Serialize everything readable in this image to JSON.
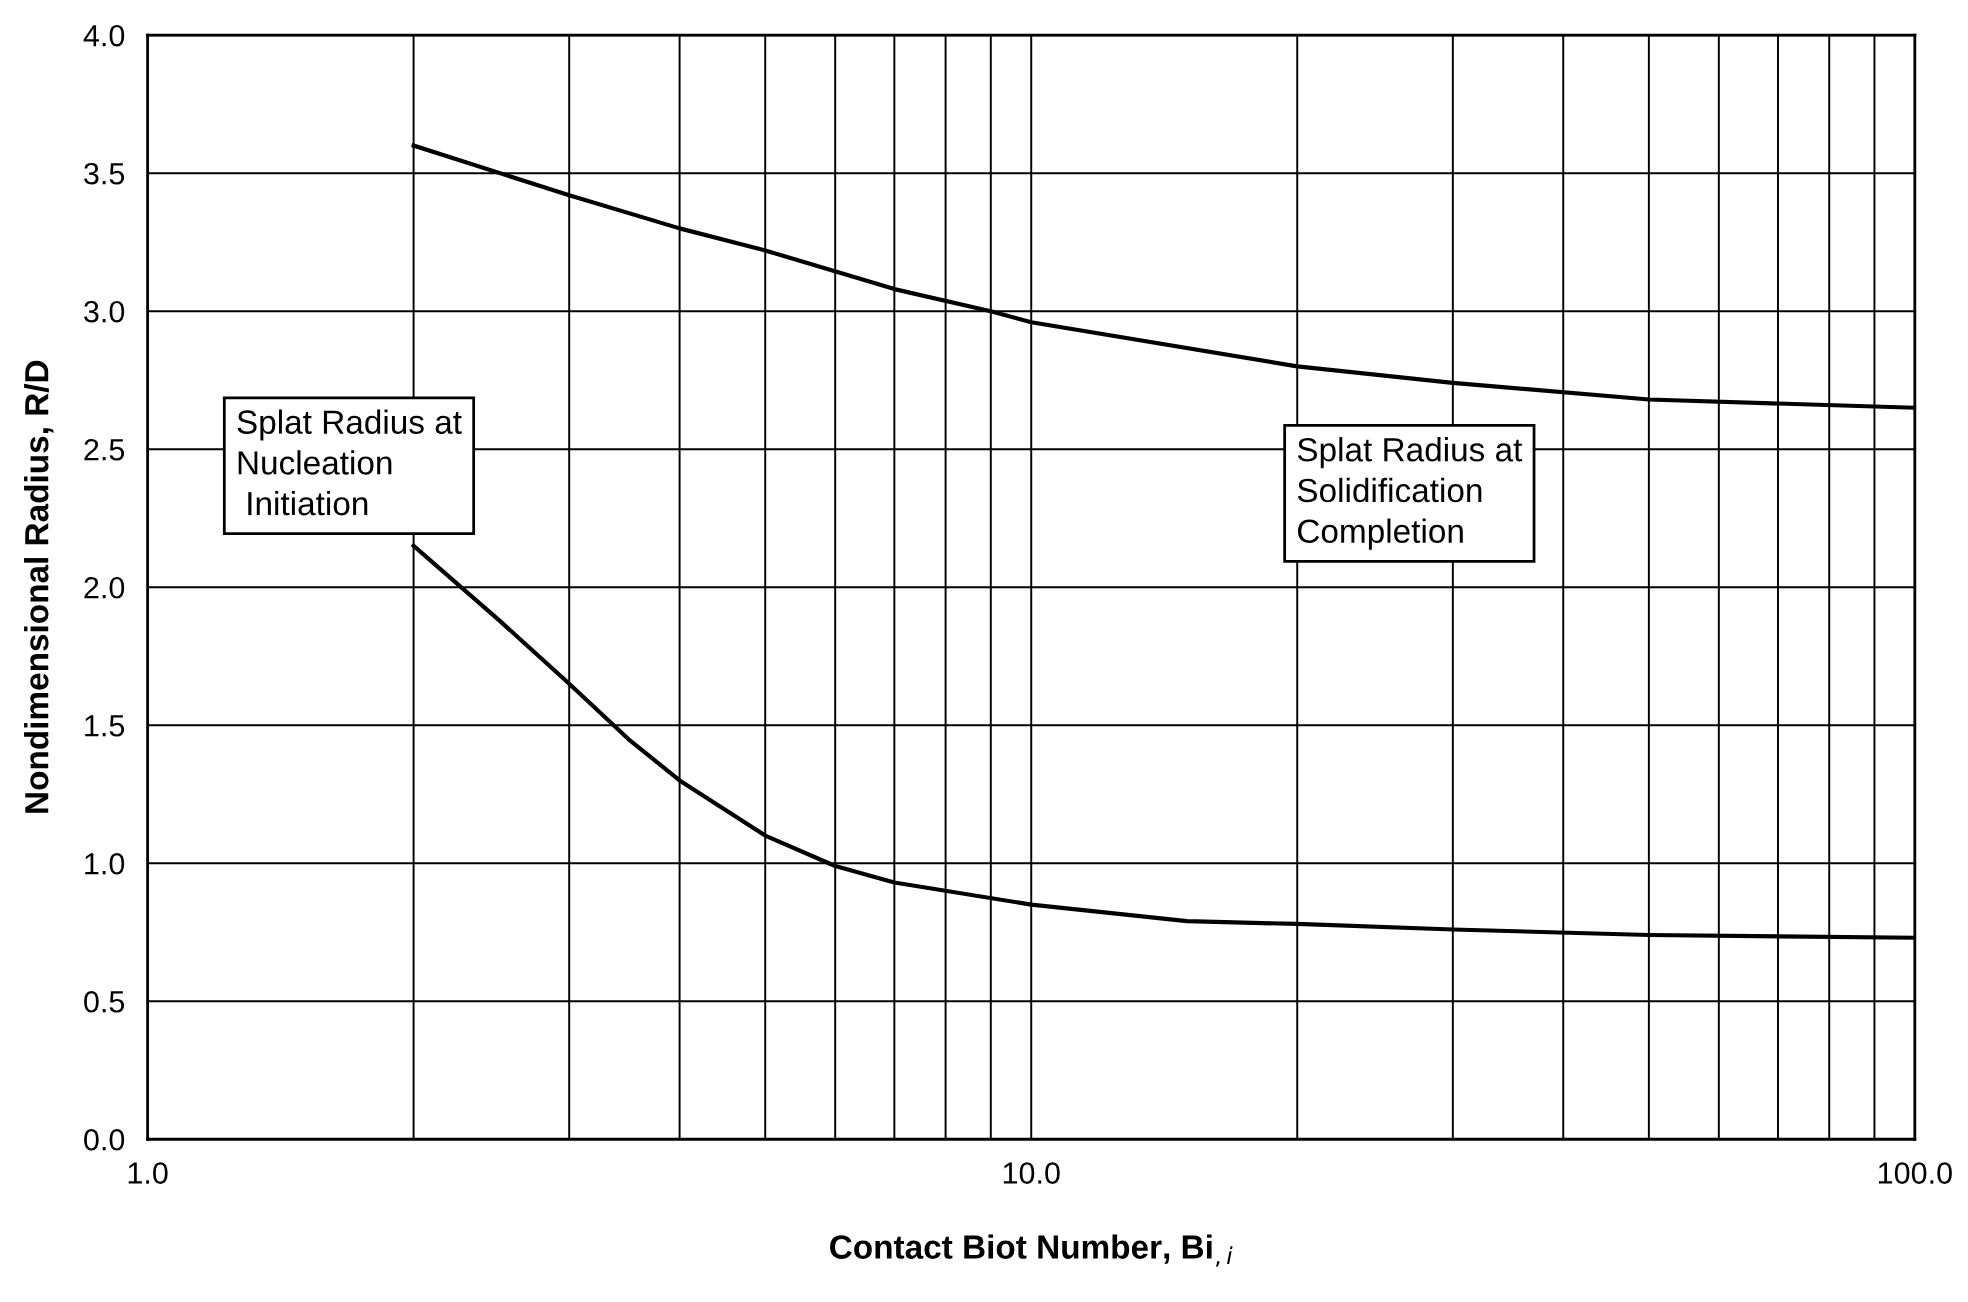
{
  "chart_data": {
    "type": "line",
    "xlabel": "Contact Biot Number, Bi$_{,i}$",
    "ylabel": "Nondimensional Radius, R/D",
    "log": "x",
    "grid": true,
    "marker": "none",
    "line_style": "solid",
    "xlim": [
      1,
      100
    ],
    "ylim": [
      0,
      4
    ],
    "xticks": [
      {
        "value": 1,
        "label": "1.0"
      },
      {
        "value": 2,
        "label": null
      },
      {
        "value": 3,
        "label": null
      },
      {
        "value": 4,
        "label": null
      },
      {
        "value": 5,
        "label": null
      },
      {
        "value": 6,
        "label": null
      },
      {
        "value": 7,
        "label": null
      },
      {
        "value": 8,
        "label": null
      },
      {
        "value": 9,
        "label": null
      },
      {
        "value": 10,
        "label": "10.0"
      },
      {
        "value": 20,
        "label": null
      },
      {
        "value": 30,
        "label": null
      },
      {
        "value": 40,
        "label": null
      },
      {
        "value": 50,
        "label": null
      },
      {
        "value": 60,
        "label": null
      },
      {
        "value": 70,
        "label": null
      },
      {
        "value": 80,
        "label": null
      },
      {
        "value": 90,
        "label": null
      },
      {
        "value": 100,
        "label": "100.0"
      }
    ],
    "yticks": [
      {
        "value": 0,
        "label": "0.0"
      },
      {
        "value": 0.5,
        "label": "0.5"
      },
      {
        "value": 1,
        "label": "1.0"
      },
      {
        "value": 1.5,
        "label": "1.5"
      },
      {
        "value": 2,
        "label": "2.0"
      },
      {
        "value": 2.5,
        "label": "2.5"
      },
      {
        "value": 3,
        "label": "3.0"
      },
      {
        "value": 3.5,
        "label": "3.5"
      },
      {
        "value": 4,
        "label": "4.0"
      }
    ],
    "series": [
      {
        "color": "#000000",
        "x": [
          2,
          3,
          4,
          5,
          7,
          9,
          10,
          20,
          30,
          50,
          100
        ],
        "values": [
          3.6,
          3.42,
          3.3,
          3.22,
          3.08,
          3.0,
          2.96,
          2.8,
          2.74,
          2.68,
          2.65
        ]
      },
      {
        "color": "#000000",
        "x": [
          2,
          2.5,
          3,
          3.5,
          4,
          5,
          6,
          7,
          10,
          15,
          20,
          30,
          50,
          100
        ],
        "values": [
          2.15,
          1.88,
          1.65,
          1.45,
          1.3,
          1.1,
          0.99,
          0.93,
          0.85,
          0.79,
          0.78,
          0.76,
          0.74,
          0.73
        ]
      }
    ],
    "annotations": [
      "Splat Radius at\nNucleation\n Initiation",
      "Splat Radius at\nSolidification\nCompletion"
    ]
  }
}
